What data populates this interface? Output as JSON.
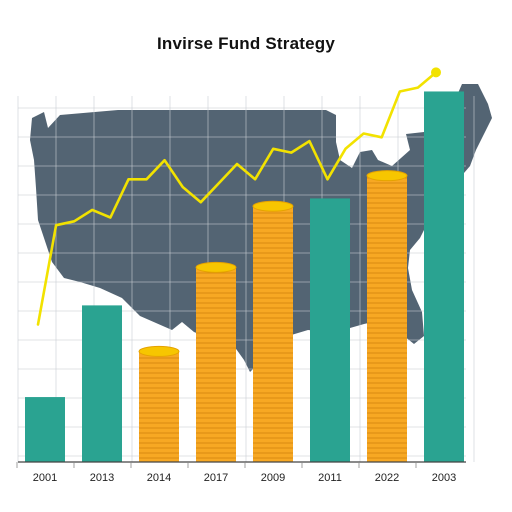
{
  "chart_data": {
    "type": "bar",
    "title": "Invirse Fund Strategy",
    "xlabel": "",
    "ylabel": "",
    "ylim": [
      0,
      100
    ],
    "grid": true,
    "categories": [
      "2001",
      "2013",
      "2014",
      "2017",
      "2009",
      "2011",
      "2022",
      "2003"
    ],
    "values": [
      17,
      41,
      30,
      52,
      68,
      69,
      76,
      97
    ],
    "bar_styles": [
      "solid",
      "solid",
      "coins",
      "coins",
      "coins",
      "solid",
      "coins",
      "solid"
    ],
    "line": {
      "values": [
        36,
        62,
        63,
        66,
        64,
        74,
        74,
        79,
        72,
        68,
        73,
        78,
        74,
        82,
        81,
        84,
        74,
        82,
        86,
        85,
        97,
        98,
        102
      ],
      "color": "#f2e200"
    },
    "colors": {
      "map": "#536473",
      "bar": "#2aa391",
      "coin": "#f7a823",
      "coin_edge": "#f7c600",
      "line": "#f2e200",
      "grid": "#c9cdd2"
    }
  }
}
